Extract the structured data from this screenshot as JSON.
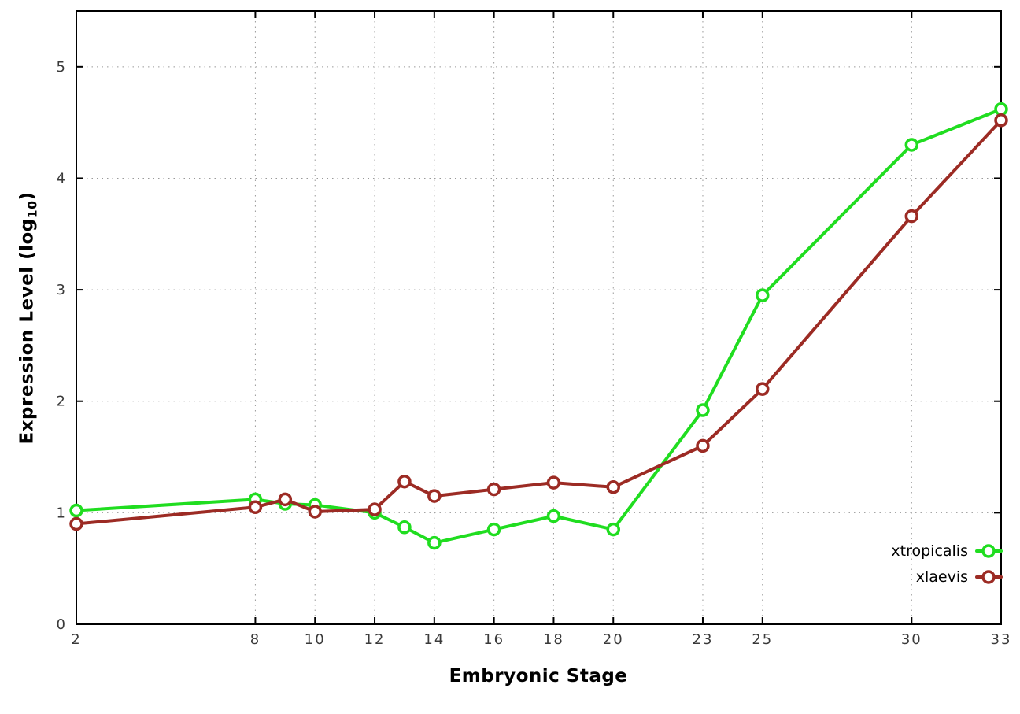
{
  "chart_data": {
    "type": "line",
    "title": "",
    "xlabel": "Embryonic Stage",
    "ylabel_main": "Expression Level (log",
    "ylabel_sub": "10",
    "ylabel_suffix": ")",
    "x": [
      2,
      8,
      9,
      10,
      12,
      13,
      14,
      16,
      18,
      20,
      23,
      25,
      30,
      33
    ],
    "series": [
      {
        "name": "xtropicalis",
        "color": "#20dd20",
        "values": [
          1.02,
          1.12,
          1.08,
          1.07,
          1.0,
          0.87,
          0.73,
          0.85,
          0.97,
          0.85,
          1.92,
          2.95,
          4.3,
          4.62
        ]
      },
      {
        "name": "xlaevis",
        "color": "#9c2b24",
        "values": [
          0.9,
          1.05,
          1.12,
          1.01,
          1.03,
          1.28,
          1.15,
          1.21,
          1.27,
          1.23,
          1.6,
          2.11,
          3.66,
          4.52
        ]
      }
    ],
    "xticks": [
      2,
      8,
      10,
      12,
      14,
      16,
      18,
      20,
      23,
      25,
      30,
      33
    ],
    "yticks": [
      0,
      1,
      2,
      3,
      4,
      5
    ],
    "xlim": [
      2,
      33
    ],
    "ylim": [
      0,
      5.5
    ],
    "grid": true,
    "legend_position": "bottom-right",
    "background_color": "#ffffff",
    "border_color": "#000000",
    "grid_color": "#999999",
    "tick_label_color": "#3a3a3a",
    "marker": "open-circle"
  }
}
